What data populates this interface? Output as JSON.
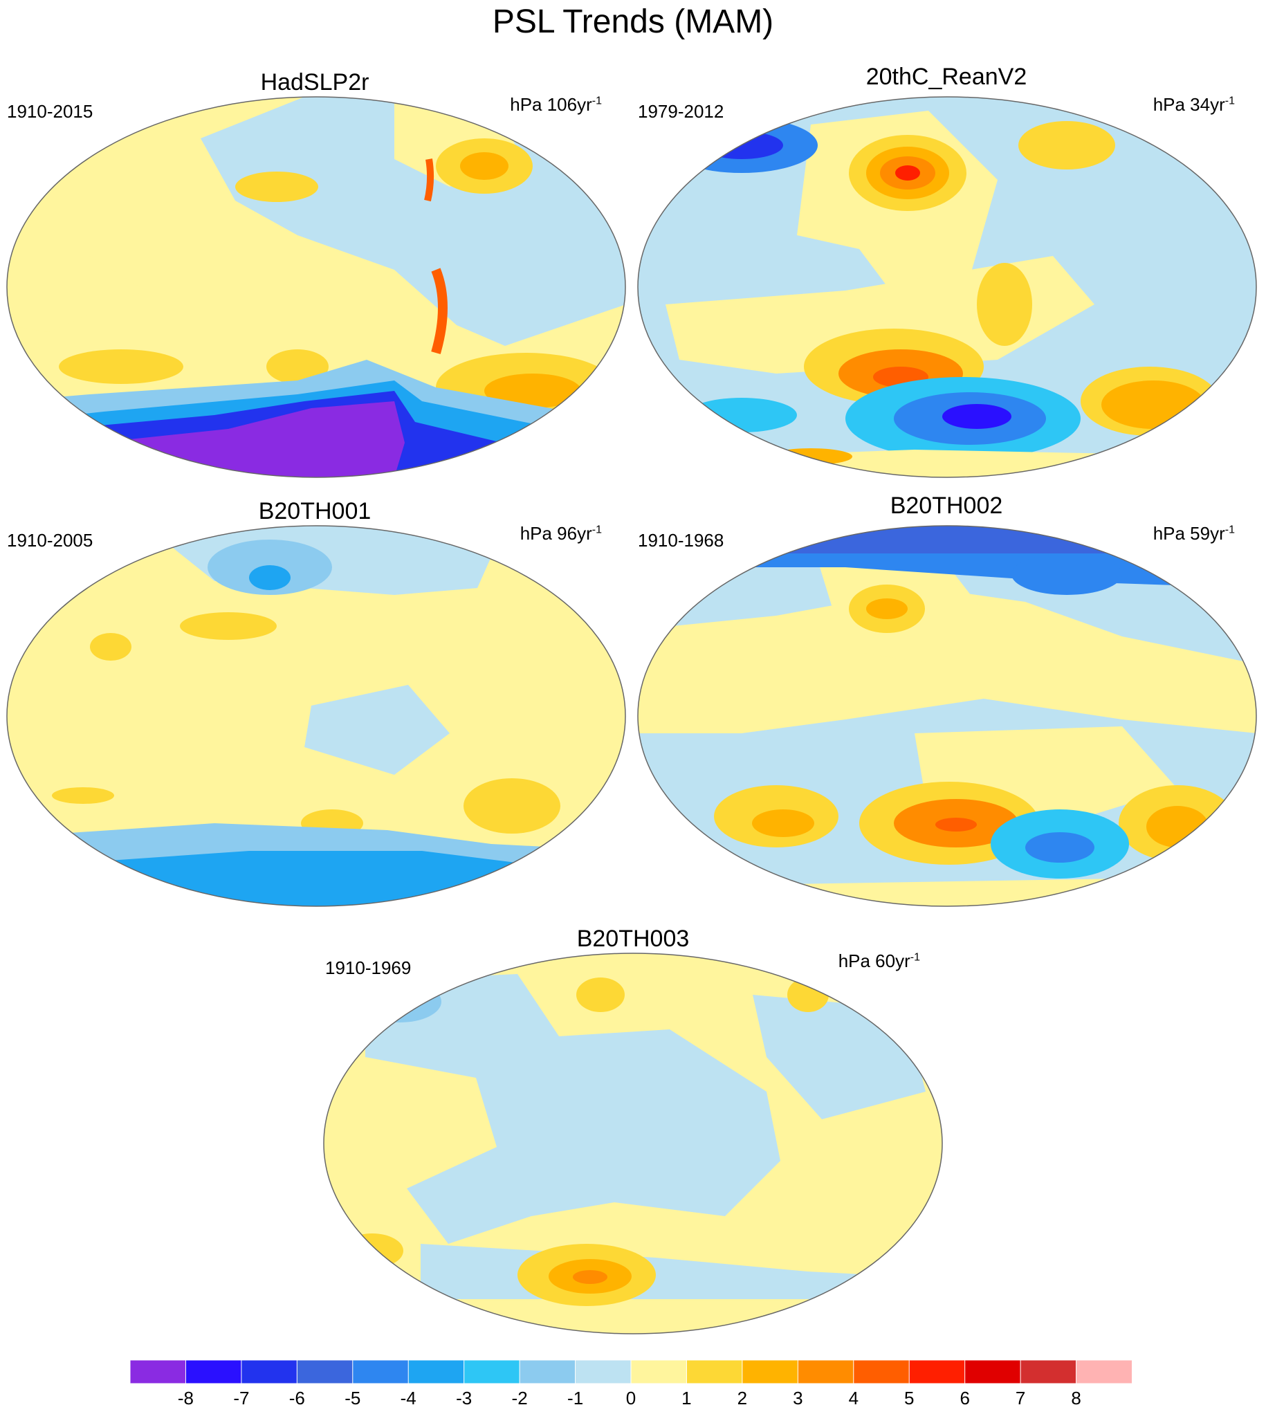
{
  "title": "PSL Trends (MAM)",
  "panels": [
    {
      "id": "hadslp2r",
      "name": "HadSLP2r",
      "period": "1910-2015",
      "units": "hPa 106yr",
      "units_exp": "-1"
    },
    {
      "id": "20thc",
      "name": "20thC_ReanV2",
      "period": "1979-2012",
      "units": "hPa 34yr",
      "units_exp": "-1"
    },
    {
      "id": "b20th001",
      "name": "B20TH001",
      "period": "1910-2005",
      "units": "hPa 96yr",
      "units_exp": "-1"
    },
    {
      "id": "b20th002",
      "name": "B20TH002",
      "period": "1910-1968",
      "units": "hPa 59yr",
      "units_exp": "-1"
    },
    {
      "id": "b20th003",
      "name": "B20TH003",
      "period": "1910-1969",
      "units": "hPa 60yr",
      "units_exp": "-1"
    }
  ],
  "colorbar": {
    "labels": [
      "-8",
      "-7",
      "-6",
      "-5",
      "-4",
      "-3",
      "-2",
      "-1",
      "0",
      "1",
      "2",
      "3",
      "4",
      "5",
      "6",
      "7",
      "8"
    ],
    "colors": [
      "#8a2be2",
      "#2a10ff",
      "#2233ee",
      "#3b66dd",
      "#2e86f0",
      "#1ea5f2",
      "#2ec6f5",
      "#8ccbef",
      "#bde2f2",
      "#fff59d",
      "#fdd835",
      "#ffb300",
      "#ff8c00",
      "#ff5e00",
      "#ff1f00",
      "#e00000",
      "#d32f2f",
      "#ffb3b3"
    ]
  }
}
